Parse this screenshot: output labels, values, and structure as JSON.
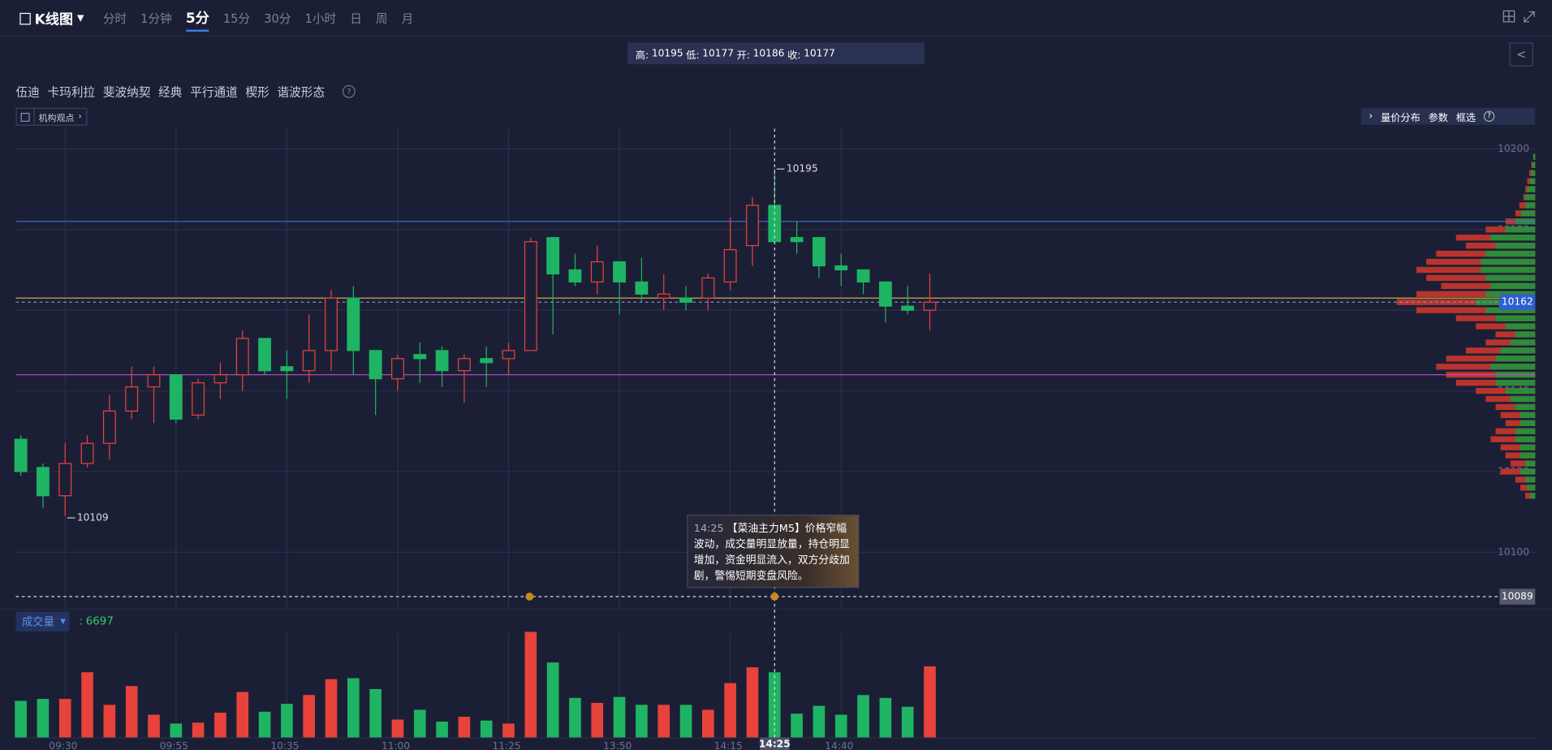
{
  "header": {
    "title": "K线图",
    "tabs": [
      "分时",
      "1分钟",
      "5分",
      "15分",
      "30分",
      "1小时",
      "日",
      "周",
      "月"
    ],
    "active_tab": 2
  },
  "info_bar": {
    "labels": [
      "高:",
      "低:",
      "开:",
      "收:"
    ]
  },
  "tools": [
    "伍迪",
    "卡玛利拉",
    "斐波纳契",
    "经典",
    "平行通道",
    "楔形",
    "谐波形态"
  ],
  "tag": "机构观点",
  "toolbar_right": [
    "量价分布",
    "参数",
    "框选"
  ],
  "tooltip": {
    "title": "【菜油主力M5】",
    "text": "价格窄幅波动，成交量明显放量，持仓明显增加，资金明显流入，双方分歧加剧，警惕短期变盘风险。"
  },
  "chart_data": {
    "type": "candlestick",
    "categories": [
      null,
      null,
      "09:30",
      null,
      null,
      null,
      null,
      "09:55",
      null,
      null,
      null,
      null,
      "10:35",
      null,
      null,
      null,
      null,
      "11:00",
      null,
      null,
      null,
      null,
      "11:25",
      null,
      null,
      null,
      null,
      "13:50",
      null,
      null,
      null,
      null,
      "14:15",
      null,
      "14:25",
      null,
      null,
      "14:40",
      null,
      null,
      null,
      null
    ],
    "open": [
      10128,
      10121,
      10114,
      10122,
      10127,
      10135,
      10141,
      10144,
      10134,
      10142,
      10144,
      10153,
      10146,
      10145,
      10150,
      10163,
      10150,
      10143,
      10149,
      10150,
      10145,
      10148,
      10148,
      10150,
      10178,
      10170,
      10167,
      10172,
      10167,
      10163,
      10163,
      10163,
      10167,
      10176,
      10186,
      10178,
      10178,
      10171,
      10170,
      10167,
      10161,
      10160
    ],
    "high": [
      10129,
      10122,
      10127,
      10129,
      10139,
      10146,
      10146,
      10144,
      10143,
      10147,
      10155,
      10153,
      10150,
      10159,
      10165,
      10166,
      10150,
      10149,
      10152,
      10151,
      10149,
      10151,
      10152,
      10178,
      10178,
      10174,
      10176,
      10172,
      10173,
      10169,
      10166,
      10169,
      10183,
      10188,
      10195,
      10182,
      10178,
      10174,
      10170,
      10167,
      10166,
      10169
    ],
    "low": [
      10119,
      10111,
      10109,
      10121,
      10123,
      10133,
      10132,
      10132,
      10133,
      10138,
      10140,
      10144,
      10138,
      10142,
      10145,
      10144,
      10134,
      10140,
      10142,
      10141,
      10137,
      10141,
      10144,
      10150,
      10154,
      10166,
      10164,
      10159,
      10162,
      10160,
      10160,
      10160,
      10165,
      10171,
      10177,
      10174,
      10168,
      10166,
      10164,
      10157,
      10159,
      10155
    ],
    "close": [
      10120,
      10114,
      10122,
      10127,
      10135,
      10141,
      10144,
      10133,
      10142,
      10144,
      10153,
      10145,
      10145,
      10150,
      10163,
      10150,
      10143,
      10148,
      10148,
      10145,
      10148,
      10147,
      10150,
      10177,
      10169,
      10167,
      10172,
      10167,
      10164,
      10164,
      10162,
      10168,
      10175,
      10186,
      10177,
      10177,
      10171,
      10170,
      10167,
      10161,
      10160,
      10162
    ],
    "up_color": "#e8433a",
    "down_color": "#1fb463",
    "ylim": [
      10086,
      10205
    ],
    "yticks": [
      10100,
      10120,
      10140,
      10160,
      10180,
      10200
    ],
    "grid": true,
    "crosshair_index": 34,
    "cursor_price": 10089,
    "reference_lines": [
      {
        "value": 10182,
        "color": "#3f6fd6"
      },
      {
        "value": 10163,
        "color": "#d4a640"
      },
      {
        "value": 10144,
        "color": "#c04fc4"
      }
    ],
    "volume": {
      "name": "成交量",
      "prefix": ":",
      "ylim": [
        0,
        11000
      ],
      "values": [
        3760,
        3960,
        3960,
        6700,
        3350,
        5280,
        2330,
        1420,
        1520,
        2540,
        4670,
        2640,
        3450,
        4360,
        5990,
        6090,
        4970,
        1830,
        2840,
        1620,
        2130,
        1730,
        1420,
        10860,
        7710,
        4060,
        3550,
        4160,
        3350,
        3350,
        3350,
        2840,
        5580,
        7210,
        6697,
        2440,
        3250,
        2330,
        4360,
        4060,
        3150,
        7310
      ]
    },
    "volume_profile": {
      "color_total": "#b8342c",
      "color_buy": "#2e8b3a",
      "prices": [
        10198,
        10196,
        10194,
        10192,
        10190,
        10188,
        10186,
        10184,
        10182,
        10180,
        10178,
        10176,
        10174,
        10172,
        10170,
        10168,
        10166,
        10164,
        10162,
        10160,
        10158,
        10156,
        10154,
        10152,
        10150,
        10148,
        10146,
        10144,
        10142,
        10140,
        10138,
        10136,
        10134,
        10132,
        10130,
        10128,
        10126,
        10124,
        10122,
        10120,
        10118,
        10116,
        10114
      ],
      "total": [
        2,
        4,
        6,
        8,
        10,
        12,
        16,
        20,
        30,
        50,
        80,
        70,
        100,
        110,
        120,
        110,
        95,
        120,
        140,
        120,
        80,
        60,
        40,
        50,
        70,
        90,
        100,
        90,
        80,
        60,
        50,
        40,
        35,
        30,
        40,
        45,
        35,
        30,
        25,
        35,
        20,
        15,
        10
      ],
      "buy": [
        2,
        3,
        4,
        5,
        8,
        10,
        10,
        14,
        20,
        30,
        45,
        40,
        50,
        55,
        55,
        50,
        45,
        50,
        60,
        50,
        40,
        30,
        20,
        25,
        35,
        40,
        45,
        40,
        40,
        30,
        25,
        20,
        15,
        15,
        20,
        20,
        15,
        15,
        10,
        15,
        10,
        8,
        5
      ]
    }
  }
}
